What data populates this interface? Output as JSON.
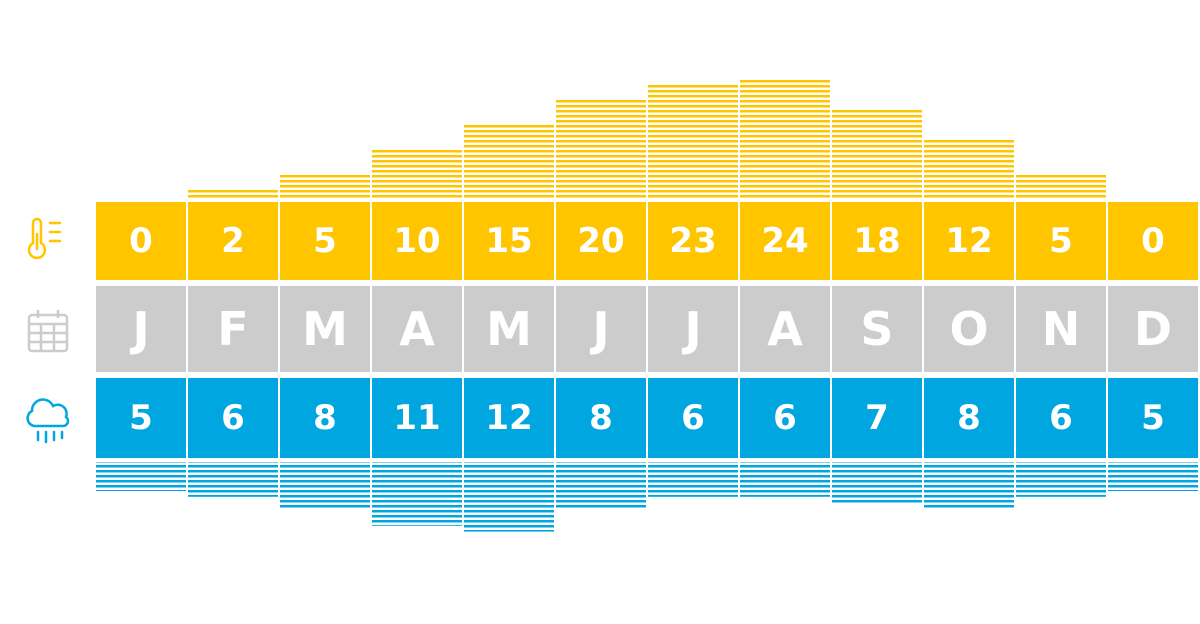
{
  "chart_data": {
    "type": "climate",
    "categories": [
      "J",
      "F",
      "M",
      "A",
      "M",
      "J",
      "J",
      "A",
      "S",
      "O",
      "N",
      "D"
    ],
    "category_color": "#cccccc",
    "temperature": {
      "values": [
        0,
        2,
        5,
        10,
        15,
        20,
        23,
        24,
        18,
        12,
        5,
        0
      ],
      "color": "#ffc600"
    },
    "precipitation": {
      "values": [
        5,
        6,
        8,
        11,
        12,
        8,
        6,
        6,
        7,
        8,
        6,
        5
      ],
      "color": "#00a6e0"
    }
  }
}
